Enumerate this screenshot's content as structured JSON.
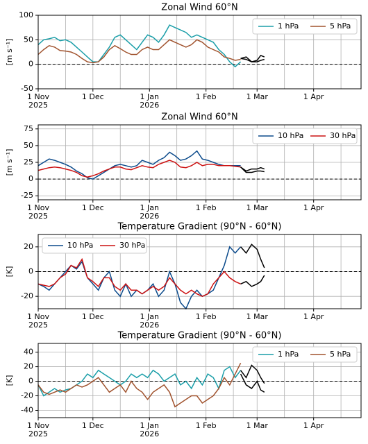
{
  "chart_data": [
    {
      "type": "line",
      "title": "Zonal Wind 60°N",
      "ylabel": "[m s⁻¹]",
      "ylim": [
        -50,
        100
      ],
      "yticks": [
        -50,
        0,
        50,
        100
      ],
      "xlim": [
        0,
        177
      ],
      "xticks": [
        {
          "value": 0,
          "label": "1 Nov\n2025"
        },
        {
          "value": 30,
          "label": "1 Dec"
        },
        {
          "value": 61,
          "label": "1 Jan\n2026"
        },
        {
          "value": 92,
          "label": "1 Feb"
        },
        {
          "value": 120,
          "label": "1 Mar"
        },
        {
          "value": 151,
          "label": "1 Apr"
        }
      ],
      "xminor": [
        15,
        45,
        76,
        107,
        135,
        166
      ],
      "grid": true,
      "reference_line": 0,
      "legend": "upper right",
      "series": [
        {
          "name": "1 hPa",
          "color": "#1a9ea8",
          "x": [
            0,
            3,
            6,
            9,
            12,
            15,
            18,
            21,
            24,
            27,
            30,
            33,
            36,
            39,
            42,
            45,
            48,
            51,
            54,
            57,
            60,
            63,
            66,
            69,
            72,
            75,
            78,
            81,
            84,
            87,
            90,
            93,
            96,
            99,
            102,
            105,
            108,
            111
          ],
          "values": [
            40,
            50,
            52,
            55,
            48,
            50,
            45,
            35,
            25,
            15,
            5,
            5,
            20,
            35,
            55,
            60,
            50,
            40,
            30,
            45,
            60,
            55,
            45,
            60,
            80,
            75,
            70,
            65,
            55,
            60,
            55,
            50,
            45,
            30,
            20,
            5,
            -5,
            5
          ]
        },
        {
          "name": "5 hPa",
          "color": "#a0522d",
          "x": [
            0,
            3,
            6,
            9,
            12,
            15,
            18,
            21,
            24,
            27,
            30,
            33,
            36,
            39,
            42,
            45,
            48,
            51,
            54,
            57,
            60,
            63,
            66,
            69,
            72,
            75,
            78,
            81,
            84,
            87,
            90,
            93,
            96,
            99,
            102,
            105,
            108,
            111
          ],
          "values": [
            20,
            30,
            38,
            35,
            28,
            27,
            25,
            20,
            12,
            5,
            3,
            5,
            15,
            30,
            38,
            32,
            25,
            20,
            20,
            30,
            35,
            30,
            30,
            40,
            50,
            45,
            40,
            35,
            40,
            50,
            45,
            35,
            30,
            25,
            15,
            12,
            8,
            10
          ]
        },
        {
          "color": "#000000",
          "x": [
            111,
            114,
            117,
            120,
            122,
            124
          ],
          "values": [
            12,
            15,
            5,
            8,
            18,
            15
          ]
        },
        {
          "color": "#000000",
          "x": [
            111,
            114,
            117,
            120,
            122,
            124
          ],
          "values": [
            12,
            10,
            5,
            5,
            8,
            10
          ]
        }
      ]
    },
    {
      "type": "line",
      "title": "Zonal Wind 60°N",
      "ylabel": "[m s⁻¹]",
      "ylim": [
        -31,
        81
      ],
      "yticks": [
        -25,
        0,
        25,
        50,
        75
      ],
      "xlim": [
        0,
        177
      ],
      "xticks": [
        {
          "value": 0,
          "label": "1 Nov\n2025"
        },
        {
          "value": 30,
          "label": "1 Dec"
        },
        {
          "value": 61,
          "label": "1 Jan\n2026"
        },
        {
          "value": 92,
          "label": "1 Feb"
        },
        {
          "value": 120,
          "label": "1 Mar"
        },
        {
          "value": 151,
          "label": "1 Apr"
        }
      ],
      "xminor": [
        15,
        45,
        76,
        107,
        135,
        166
      ],
      "grid": true,
      "reference_line": 0,
      "legend": "upper right",
      "series": [
        {
          "name": "10 hPa",
          "color": "#0b4a8b",
          "x": [
            0,
            3,
            6,
            9,
            12,
            15,
            18,
            21,
            24,
            27,
            30,
            33,
            36,
            39,
            42,
            45,
            48,
            51,
            54,
            57,
            60,
            63,
            66,
            69,
            72,
            75,
            78,
            81,
            84,
            87,
            90,
            93,
            96,
            99,
            102,
            105,
            108,
            111
          ],
          "values": [
            20,
            25,
            30,
            28,
            25,
            22,
            18,
            12,
            8,
            2,
            0,
            5,
            10,
            15,
            20,
            22,
            20,
            18,
            20,
            28,
            25,
            22,
            28,
            32,
            40,
            35,
            28,
            30,
            35,
            42,
            30,
            28,
            25,
            22,
            20,
            20,
            20,
            20
          ]
        },
        {
          "name": "30 hPa",
          "color": "#cc1111",
          "x": [
            0,
            3,
            6,
            9,
            12,
            15,
            18,
            21,
            24,
            27,
            30,
            33,
            36,
            39,
            42,
            45,
            48,
            51,
            54,
            57,
            60,
            63,
            66,
            69,
            72,
            75,
            78,
            81,
            84,
            87,
            90,
            93,
            96,
            99,
            102,
            105,
            108,
            111
          ],
          "values": [
            13,
            15,
            17,
            18,
            17,
            15,
            13,
            10,
            5,
            3,
            5,
            8,
            12,
            15,
            18,
            18,
            15,
            14,
            17,
            20,
            18,
            17,
            22,
            25,
            28,
            25,
            18,
            17,
            20,
            25,
            20,
            22,
            22,
            20,
            20,
            20,
            19,
            18
          ]
        },
        {
          "color": "#000000",
          "x": [
            111,
            114,
            117,
            120,
            122,
            124
          ],
          "values": [
            18,
            12,
            15,
            15,
            17,
            15
          ]
        },
        {
          "color": "#000000",
          "x": [
            111,
            114,
            117,
            120,
            122,
            124
          ],
          "values": [
            18,
            10,
            10,
            12,
            12,
            11
          ]
        }
      ]
    },
    {
      "type": "line",
      "title": "Temperature Gradient (90°N - 60°N)",
      "ylabel": "[K]",
      "ylim": [
        -30,
        30
      ],
      "yticks": [
        -20,
        0,
        20
      ],
      "xlim": [
        0,
        177
      ],
      "xticks": [
        {
          "value": 0,
          "label": "1 Nov\n2025"
        },
        {
          "value": 30,
          "label": "1 Dec"
        },
        {
          "value": 61,
          "label": "1 Jan\n2026"
        },
        {
          "value": 92,
          "label": "1 Feb"
        },
        {
          "value": 120,
          "label": "1 Mar"
        },
        {
          "value": 151,
          "label": "1 Apr"
        }
      ],
      "xminor": [
        15,
        45,
        76,
        107,
        135,
        166
      ],
      "grid": true,
      "reference_line": 0,
      "legend": "upper left",
      "series": [
        {
          "name": "10 hPa",
          "color": "#0b4a8b",
          "x": [
            0,
            3,
            6,
            9,
            12,
            15,
            18,
            21,
            24,
            27,
            30,
            33,
            36,
            39,
            42,
            45,
            48,
            51,
            54,
            57,
            60,
            63,
            66,
            69,
            72,
            75,
            78,
            81,
            84,
            87,
            90,
            93,
            96,
            99,
            102,
            105,
            108,
            111
          ],
          "values": [
            -10,
            -12,
            -15,
            -10,
            -5,
            0,
            5,
            2,
            8,
            -5,
            -10,
            -15,
            -5,
            0,
            -15,
            -20,
            -10,
            -20,
            -15,
            -18,
            -15,
            -10,
            -20,
            -15,
            0,
            -10,
            -25,
            -30,
            -20,
            -15,
            -20,
            -18,
            -15,
            -5,
            5,
            20,
            15,
            20
          ]
        },
        {
          "name": "30 hPa",
          "color": "#cc1111",
          "x": [
            0,
            3,
            6,
            9,
            12,
            15,
            18,
            21,
            24,
            27,
            30,
            33,
            36,
            39,
            42,
            45,
            48,
            51,
            54,
            57,
            60,
            63,
            66,
            69,
            72,
            75,
            78,
            81,
            84,
            87,
            90,
            93,
            96,
            99,
            102,
            105,
            108,
            111
          ],
          "values": [
            -10,
            -11,
            -12,
            -10,
            -5,
            -2,
            5,
            3,
            10,
            -5,
            -8,
            -12,
            -5,
            -5,
            -12,
            -15,
            -10,
            -15,
            -15,
            -18,
            -15,
            -12,
            -15,
            -12,
            -5,
            -10,
            -15,
            -18,
            -15,
            -18,
            -20,
            -18,
            -10,
            -5,
            0,
            -5,
            -8,
            -10
          ]
        },
        {
          "color": "#000000",
          "x": [
            111,
            114,
            117,
            120,
            122,
            124
          ],
          "values": [
            20,
            15,
            22,
            18,
            10,
            3
          ]
        },
        {
          "color": "#000000",
          "x": [
            111,
            114,
            117,
            120,
            122,
            124
          ],
          "values": [
            -10,
            -8,
            -12,
            -10,
            -8,
            -3
          ]
        }
      ]
    },
    {
      "type": "line",
      "title": "Temperature Gradient (90°N - 60°N)",
      "ylabel": "[K]",
      "ylim": [
        -50,
        52
      ],
      "yticks": [
        -40,
        -20,
        0,
        20,
        40
      ],
      "xlim": [
        0,
        177
      ],
      "xticks": [
        {
          "value": 0,
          "label": "1 Nov\n2025"
        },
        {
          "value": 30,
          "label": "1 Dec"
        },
        {
          "value": 61,
          "label": "1 Jan\n2026"
        },
        {
          "value": 92,
          "label": "1 Feb"
        },
        {
          "value": 120,
          "label": "1 Mar"
        },
        {
          "value": 151,
          "label": "1 Apr"
        }
      ],
      "xminor": [
        15,
        45,
        76,
        107,
        135,
        166
      ],
      "grid": true,
      "reference_line": 0,
      "legend": "upper right",
      "series": [
        {
          "name": "1 hPa",
          "color": "#1a9ea8",
          "x": [
            0,
            3,
            6,
            9,
            12,
            15,
            18,
            21,
            24,
            27,
            30,
            33,
            36,
            39,
            42,
            45,
            48,
            51,
            54,
            57,
            60,
            63,
            66,
            69,
            72,
            75,
            78,
            81,
            84,
            87,
            90,
            93,
            96,
            99,
            102,
            105,
            108,
            111
          ],
          "values": [
            -5,
            -20,
            -15,
            -10,
            -15,
            -12,
            -10,
            -5,
            0,
            10,
            5,
            15,
            10,
            5,
            0,
            -5,
            0,
            10,
            5,
            10,
            5,
            15,
            10,
            0,
            5,
            10,
            -5,
            0,
            -10,
            5,
            -5,
            10,
            5,
            -10,
            15,
            20,
            5,
            15
          ]
        },
        {
          "name": "5 hPa",
          "color": "#a0522d",
          "x": [
            0,
            3,
            6,
            9,
            12,
            15,
            18,
            21,
            24,
            27,
            30,
            33,
            36,
            39,
            42,
            45,
            48,
            51,
            54,
            57,
            60,
            63,
            66,
            69,
            72,
            75,
            78,
            81,
            84,
            87,
            90,
            93,
            96,
            99,
            102,
            105,
            108,
            111
          ],
          "values": [
            -5,
            -15,
            -18,
            -15,
            -12,
            -15,
            -10,
            -5,
            -8,
            -5,
            0,
            5,
            -5,
            -15,
            -10,
            -5,
            -15,
            0,
            -10,
            -15,
            -25,
            -15,
            -10,
            -5,
            -15,
            -35,
            -30,
            -25,
            -20,
            -20,
            -30,
            -25,
            -20,
            -10,
            5,
            -5,
            10,
            25
          ]
        },
        {
          "color": "#000000",
          "x": [
            111,
            114,
            117,
            120,
            122,
            124
          ],
          "values": [
            15,
            5,
            22,
            15,
            5,
            -3
          ]
        },
        {
          "color": "#000000",
          "x": [
            111,
            114,
            117,
            120,
            122,
            124
          ],
          "values": [
            10,
            -5,
            -10,
            0,
            -12,
            -15
          ]
        }
      ]
    }
  ]
}
